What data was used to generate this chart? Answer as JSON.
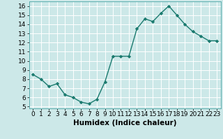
{
  "x": [
    0,
    1,
    2,
    3,
    4,
    5,
    6,
    7,
    8,
    9,
    10,
    11,
    12,
    13,
    14,
    15,
    16,
    17,
    18,
    19,
    20,
    21,
    22,
    23
  ],
  "y": [
    8.5,
    8.0,
    7.2,
    7.5,
    6.3,
    6.0,
    5.5,
    5.3,
    5.8,
    7.7,
    10.5,
    10.5,
    10.5,
    13.5,
    14.6,
    14.3,
    15.2,
    16.0,
    15.0,
    14.0,
    13.2,
    12.7,
    12.2,
    12.2
  ],
  "line_color": "#1a7a6e",
  "marker": "D",
  "marker_size": 2.2,
  "bg_color": "#cce8e8",
  "grid_color": "#ffffff",
  "xlabel": "Humidex (Indice chaleur)",
  "xlabel_fontsize": 7.5,
  "xlim": [
    -0.5,
    23.5
  ],
  "ylim": [
    4.8,
    16.5
  ],
  "yticks": [
    5,
    6,
    7,
    8,
    9,
    10,
    11,
    12,
    13,
    14,
    15,
    16
  ],
  "xticks": [
    0,
    1,
    2,
    3,
    4,
    5,
    6,
    7,
    8,
    9,
    10,
    11,
    12,
    13,
    14,
    15,
    16,
    17,
    18,
    19,
    20,
    21,
    22,
    23
  ],
  "tick_fontsize": 6.5,
  "line_width": 1.0
}
